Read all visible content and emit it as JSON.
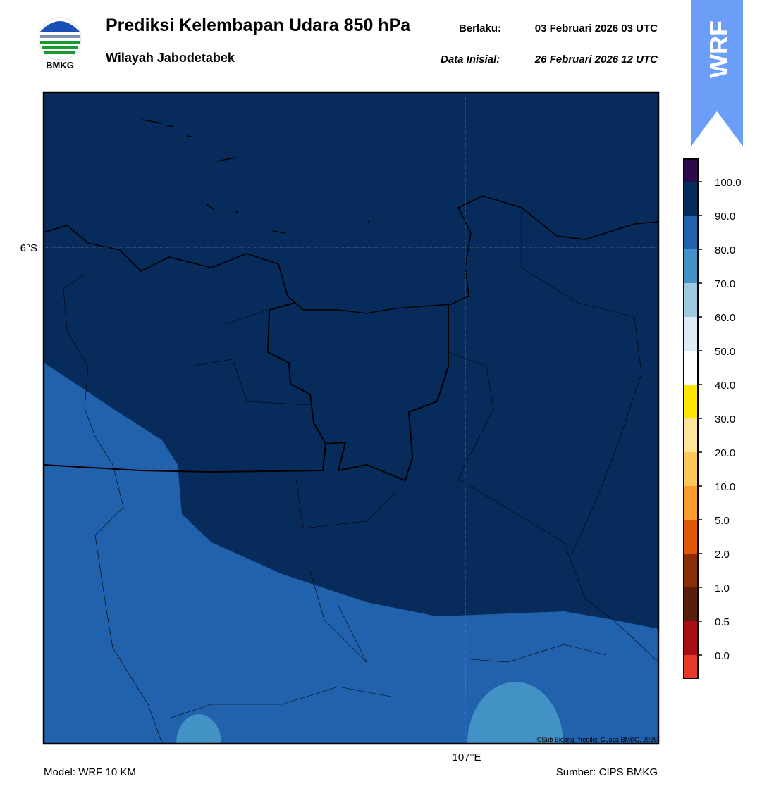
{
  "header": {
    "title": "Prediksi Kelembapan Udara 850 hPa",
    "subtitle": "Wilayah Jabodetabek",
    "valid_label": "Berlaku:",
    "valid_time": "03 Februari 2026 03 UTC",
    "init_label": "Data Inisial:",
    "init_time": "26 Februari 2026 12 UTC",
    "logo_text": "BMKG",
    "badge": "WRF"
  },
  "map": {
    "lat_label": "6°S",
    "lon_label": "107°E",
    "credit": "©Sub Bidang Prediksi Cuaca BMKG, 2026"
  },
  "colorbar": {
    "labels": [
      "100.0",
      "90.0",
      "80.0",
      "70.0",
      "60.0",
      "50.0",
      "40.0",
      "30.0",
      "20.0",
      "10.0",
      "5.0",
      "2.0",
      "1.0",
      "0.5",
      "0.0"
    ],
    "colors": [
      "#2c0b4c",
      "#072c5c",
      "#2262ad",
      "#4292c6",
      "#9ecae1",
      "#deebf7",
      "#ffffff",
      "#ffe600",
      "#ffe49a",
      "#fdc85a",
      "#fb9f2c",
      "#e05a06",
      "#8a2f05",
      "#5a1f0a",
      "#a50f15",
      "#e8392b"
    ]
  },
  "footer": {
    "model": "Model: WRF 10 KM",
    "source": "Sumber: CIPS BMKG"
  }
}
